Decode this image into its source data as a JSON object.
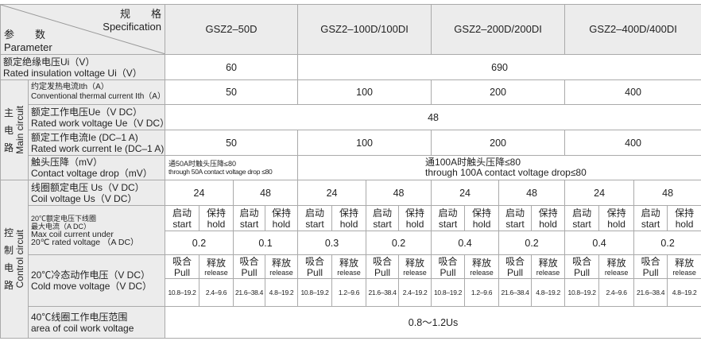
{
  "header": {
    "spec_cn": "规　　格",
    "spec_en": "Specification",
    "param_cn": "参　　数",
    "param_en": "Parameter",
    "models": [
      "GSZ2–50D",
      "GSZ2–100D/100DI",
      "GSZ2–200D/200DI",
      "GSZ2–400D/400DI"
    ]
  },
  "groups": {
    "main_cn": [
      "主",
      "电",
      "路"
    ],
    "main_en": "Main circuit",
    "control_cn": [
      "控",
      "制",
      "电",
      "路"
    ],
    "control_en": "Control circuit"
  },
  "rows": {
    "ui": {
      "cn": "额定绝缘电压Ui（V）",
      "en": "Rated insulation voltage Ui（V）",
      "values": [
        "60",
        "690"
      ]
    },
    "ith": {
      "cn": "约定发热电流Ith（A）",
      "en": "Conventional thermal current Ith（A）",
      "values": [
        "50",
        "100",
        "200",
        "400"
      ]
    },
    "ue": {
      "cn": "额定工作电压Ue（V DC）",
      "en": "Rated work voltage Ue（V DC）",
      "values": [
        "48"
      ]
    },
    "ie": {
      "cn": "额定工作电流Ie (DC–1 A)",
      "en": "Rated work current Ie (DC–1 A)",
      "values": [
        "50",
        "100",
        "200",
        "400"
      ]
    },
    "drop": {
      "cn": "触头压降（mV）",
      "en": "Contact voltage drop（mV）",
      "values": [
        {
          "cn": "通50A时触头压降≤80",
          "en": "through 50A contact voltage drop ≤80"
        },
        {
          "cn": "通100A时触头压降≤80",
          "en": "through 100A contact voltage drop≤80"
        }
      ]
    },
    "us": {
      "cn": "线圈额定电压 Us（V DC）",
      "en": "Coil voltage Us（V DC）",
      "values": [
        "24",
        "48",
        "24",
        "48",
        "24",
        "48",
        "24",
        "48"
      ]
    },
    "coil_current": {
      "cn1": "20℃额定电压下线圈",
      "cn2": "最大电流（A DC）",
      "en1": "Max coil current under",
      "en2": "20℃ rated voltage （A DC）",
      "sub_cn": [
        "启动",
        "保持"
      ],
      "sub_en": [
        "start",
        "hold"
      ],
      "values": [
        "0.2",
        "0.1",
        "0.3",
        "0.2",
        "0.4",
        "0.2",
        "0.4",
        "0.2"
      ]
    },
    "cold": {
      "cn": "20℃冷态动作电压（V DC）",
      "en": "Cold move voltage（V DC）",
      "sub_cn": [
        "吸合",
        "释放"
      ],
      "sub_en": [
        "Pull",
        "release"
      ],
      "values": [
        "10.8–19.2",
        "2.4–9.6",
        "21.6–38.4",
        "4.8–19.2",
        "10.8–19.2",
        "1.2–9.6",
        "21.6–38.4",
        "2.4–19.2",
        "10.8–19.2",
        "1.2–9.6",
        "21.6–38.4",
        "4.8–19.2",
        "10.8–19.2",
        "2.4–9.6",
        "21.6–38.4",
        "4.8–19.2"
      ]
    },
    "coil_range": {
      "cn": "40℃线圈工作电压范围",
      "en": "area of coil work voltage",
      "value": "0.8～1.2Us"
    }
  }
}
